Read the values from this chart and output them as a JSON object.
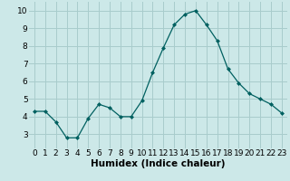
{
  "x": [
    0,
    1,
    2,
    3,
    4,
    5,
    6,
    7,
    8,
    9,
    10,
    11,
    12,
    13,
    14,
    15,
    16,
    17,
    18,
    19,
    20,
    21,
    22,
    23
  ],
  "y": [
    4.3,
    4.3,
    3.7,
    2.8,
    2.8,
    3.9,
    4.7,
    4.5,
    4.0,
    4.0,
    4.9,
    6.5,
    7.9,
    9.2,
    9.8,
    10.0,
    9.2,
    8.3,
    6.7,
    5.9,
    5.3,
    5.0,
    4.7,
    4.2
  ],
  "xlabel": "Humidex (Indice chaleur)",
  "xlim": [
    -0.5,
    23.5
  ],
  "ylim": [
    2.2,
    10.5
  ],
  "yticks": [
    3,
    4,
    5,
    6,
    7,
    8,
    9,
    10
  ],
  "xticks": [
    0,
    1,
    2,
    3,
    4,
    5,
    6,
    7,
    8,
    9,
    10,
    11,
    12,
    13,
    14,
    15,
    16,
    17,
    18,
    19,
    20,
    21,
    22,
    23
  ],
  "line_color": "#006060",
  "marker": "D",
  "marker_size": 2.0,
  "bg_color": "#cce8e8",
  "grid_color": "#a8cccc",
  "xlabel_fontsize": 7.5,
  "tick_fontsize": 6.5,
  "lw": 0.9
}
